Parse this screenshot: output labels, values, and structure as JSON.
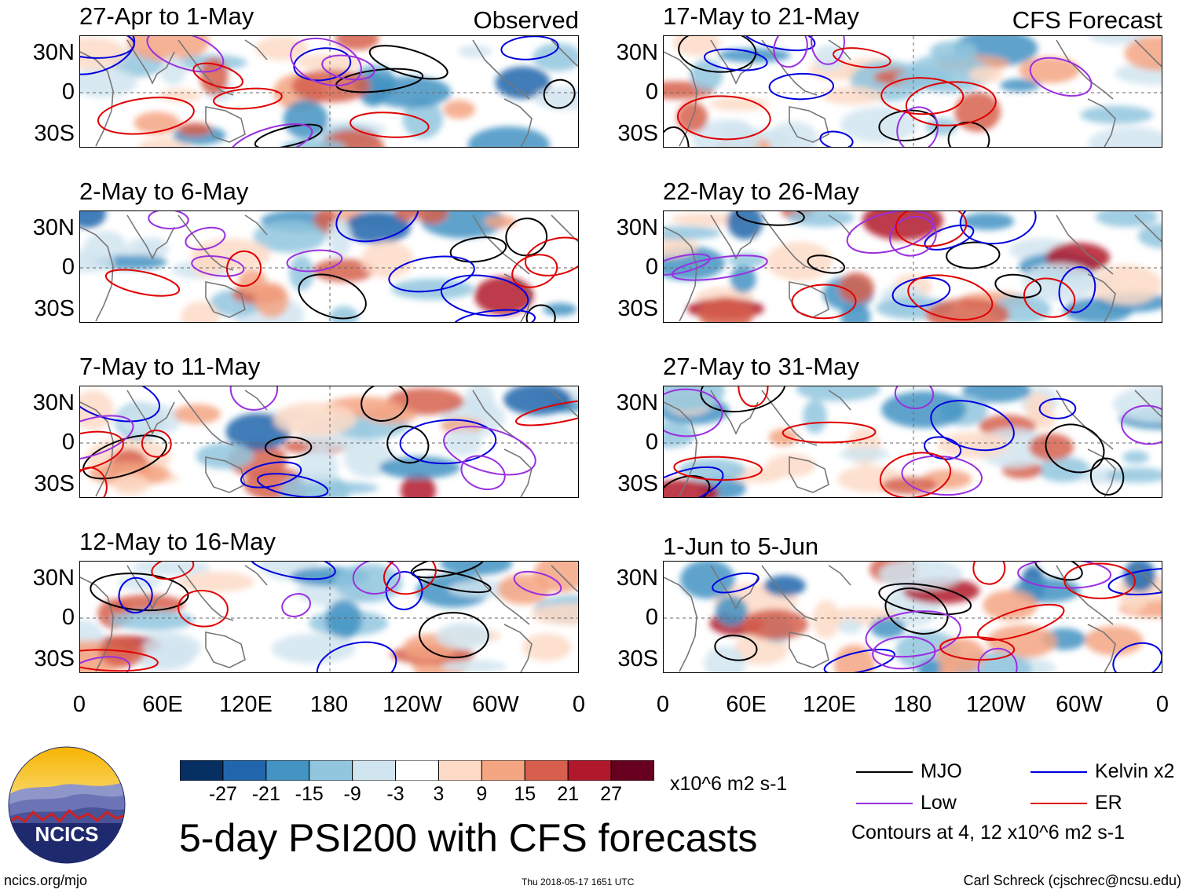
{
  "chart_data": {
    "type": "heatmap",
    "title": "5-day PSI200 with CFS forecasts",
    "units": "x10^6 m2 s-1",
    "variable": "PSI200",
    "columns": [
      {
        "label": "Observed",
        "panels": [
          "27-Apr to 1-May",
          "2-May to 6-May",
          "7-May to 11-May",
          "12-May to 16-May"
        ]
      },
      {
        "label": "CFS Forecast",
        "panels": [
          "17-May to 21-May",
          "22-May to 26-May",
          "27-May to 31-May",
          "1-Jun to 5-Jun"
        ]
      }
    ],
    "y_ticks": [
      "30N",
      "0",
      "30S"
    ],
    "x_ticks": [
      "0",
      "60E",
      "120E",
      "180",
      "120W",
      "60W",
      "0"
    ],
    "colorbar": {
      "ticks": [
        "-27",
        "-21",
        "-15",
        "-9",
        "-3",
        "3",
        "9",
        "15",
        "21",
        "27"
      ],
      "colors": [
        "#053061",
        "#2166ac",
        "#4393c3",
        "#92c5de",
        "#d1e5f0",
        "#ffffff",
        "#fddbc7",
        "#f4a582",
        "#d6604d",
        "#b2182b",
        "#67001f"
      ]
    },
    "contour_legend": [
      {
        "label": "MJO",
        "color": "#000000"
      },
      {
        "label": "Kelvin x2",
        "color": "#0000e0"
      },
      {
        "label": "Low",
        "color": "#9a2fe0"
      },
      {
        "label": "ER",
        "color": "#e00000"
      }
    ],
    "contour_note": "Contours at 4, 12 x10^6 m2 s-1"
  },
  "footer": {
    "logo_text": "NCICS",
    "site": "ncics.org/mjo",
    "timestamp": "Thu 2018-05-17 1651 UTC",
    "author": "Carl Schreck (cjschrec@ncsu.edu)"
  }
}
